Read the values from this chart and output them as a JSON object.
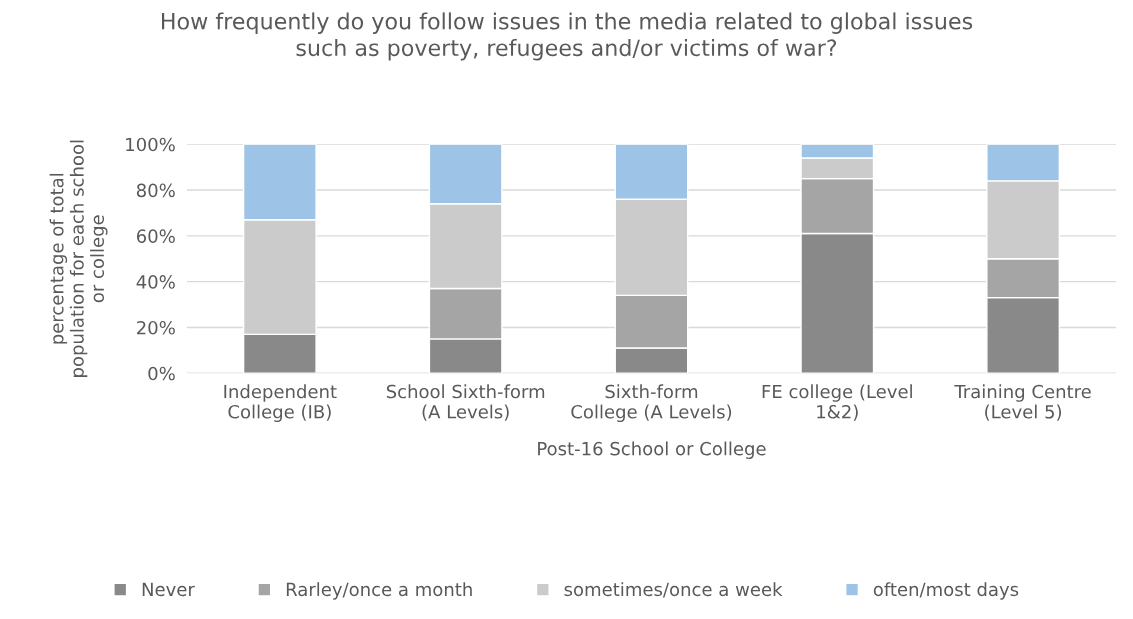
{
  "chart_data": {
    "type": "bar",
    "stacked": true,
    "title": "How frequently do you follow issues in the media related to global issues such as poverty, refugees and/or victims of war?",
    "xlabel": "Post-16 School or College",
    "ylabel": "percentage of total population for each school or college",
    "categories": [
      "Independent College (IB)",
      "School Sixth-form (A Levels)",
      "Sixth-form College (A Levels)",
      "FE college (Level 1&2)",
      "Training Centre (Level 5)"
    ],
    "series": [
      {
        "name": "Never",
        "color": "#898989",
        "values": [
          17,
          15,
          11,
          61,
          33
        ]
      },
      {
        "name": "Rarley/once a month",
        "color": "#a5a5a5",
        "values": [
          0,
          22,
          23,
          24,
          17
        ]
      },
      {
        "name": "sometimes/once a week",
        "color": "#cbcbcb",
        "values": [
          50,
          37,
          42,
          9,
          34
        ]
      },
      {
        "name": "often/most days",
        "color": "#9dc3e6",
        "values": [
          33,
          26,
          24,
          6,
          16
        ]
      }
    ],
    "ylim": [
      0,
      100
    ],
    "yticks": [
      {
        "value": 0,
        "label": "0%"
      },
      {
        "value": 20,
        "label": "20%"
      },
      {
        "value": 40,
        "label": "40%"
      },
      {
        "value": 60,
        "label": "60%"
      },
      {
        "value": 80,
        "label": "80%"
      },
      {
        "value": 100,
        "label": "100%"
      }
    ],
    "grid": "y",
    "legend": "bottom"
  }
}
